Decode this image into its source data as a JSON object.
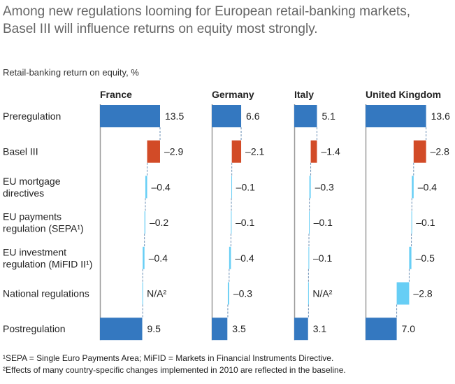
{
  "chart_data": {
    "type": "bar",
    "subtype": "waterfall",
    "title": "Among new regulations looming for European retail-banking markets,",
    "title_line2": "Basel III will influence returns on equity most strongly.",
    "ylabel": "Retail-banking return on equity, %",
    "categories": [
      [
        "Preregulation"
      ],
      [
        "Basel III"
      ],
      [
        "EU mortgage",
        "directives"
      ],
      [
        "EU payments",
        "regulation (SEPA¹)"
      ],
      [
        "EU investment",
        "regulation (MiFID II¹)"
      ],
      [
        "National regulations"
      ],
      [
        "Postregulation"
      ]
    ],
    "na_label": "N/A²",
    "colors": {
      "total": "#3478c0",
      "basel": "#d24b27",
      "other": "#67cef5",
      "axis": "#999999",
      "connector": "#6a8fb5"
    },
    "series": [
      {
        "name": "France",
        "values": [
          13.5,
          -2.9,
          -0.4,
          -0.2,
          -0.4,
          null,
          9.5
        ]
      },
      {
        "name": "Germany",
        "values": [
          6.6,
          -2.1,
          -0.1,
          -0.1,
          -0.4,
          -0.3,
          3.5
        ]
      },
      {
        "name": "Italy",
        "values": [
          5.1,
          -1.4,
          -0.3,
          -0.1,
          -0.1,
          null,
          3.1
        ]
      },
      {
        "name": "United Kingdom",
        "values": [
          13.6,
          -2.8,
          -0.4,
          -0.1,
          -0.5,
          -2.8,
          7.0
        ]
      }
    ],
    "footnotes": [
      "¹SEPA = Single Euro Payments Area; MiFID = Markets in Financial Instruments Directive.",
      "²Effects of many country-specific changes implemented in 2010 are reflected in the baseline."
    ]
  }
}
